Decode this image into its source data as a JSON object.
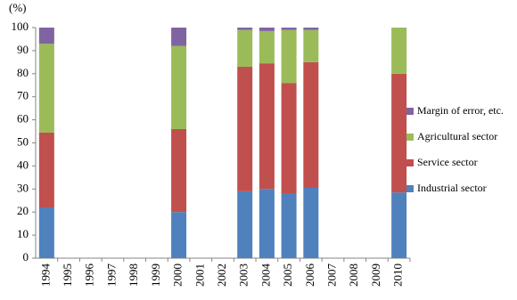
{
  "chart_data": {
    "type": "stacked_bar",
    "y_unit_label": "(%)",
    "categories": [
      "1994",
      "1995",
      "1996",
      "1997",
      "1998",
      "1999",
      "2000",
      "2001",
      "2002",
      "2003",
      "2004",
      "2005",
      "2006",
      "2007",
      "2008",
      "2009",
      "2010"
    ],
    "series": [
      {
        "name": "Industrial sector",
        "color": "#4f81bd",
        "values": [
          22,
          null,
          null,
          null,
          null,
          null,
          20,
          null,
          null,
          29,
          30,
          28,
          30.5,
          null,
          null,
          null,
          28.5
        ]
      },
      {
        "name": "Service sector",
        "color": "#c0504d",
        "values": [
          32.5,
          null,
          null,
          null,
          null,
          null,
          36,
          null,
          null,
          54,
          54.5,
          48,
          54.5,
          null,
          null,
          null,
          51.5
        ]
      },
      {
        "name": "Agricultural sector",
        "color": "#9bbb59",
        "values": [
          38.5,
          null,
          null,
          null,
          null,
          null,
          36,
          null,
          null,
          16,
          14,
          23,
          14,
          null,
          null,
          null,
          20
        ]
      },
      {
        "name": "Margin of error, etc.",
        "color": "#8064a2",
        "values": [
          7,
          null,
          null,
          null,
          null,
          null,
          8,
          null,
          null,
          1,
          1.5,
          1,
          1,
          null,
          null,
          null,
          0
        ]
      }
    ],
    "ylim": [
      0,
      100
    ],
    "yticks": [
      0,
      10,
      20,
      30,
      40,
      50,
      60,
      70,
      80,
      90,
      100
    ],
    "legend": "right"
  }
}
